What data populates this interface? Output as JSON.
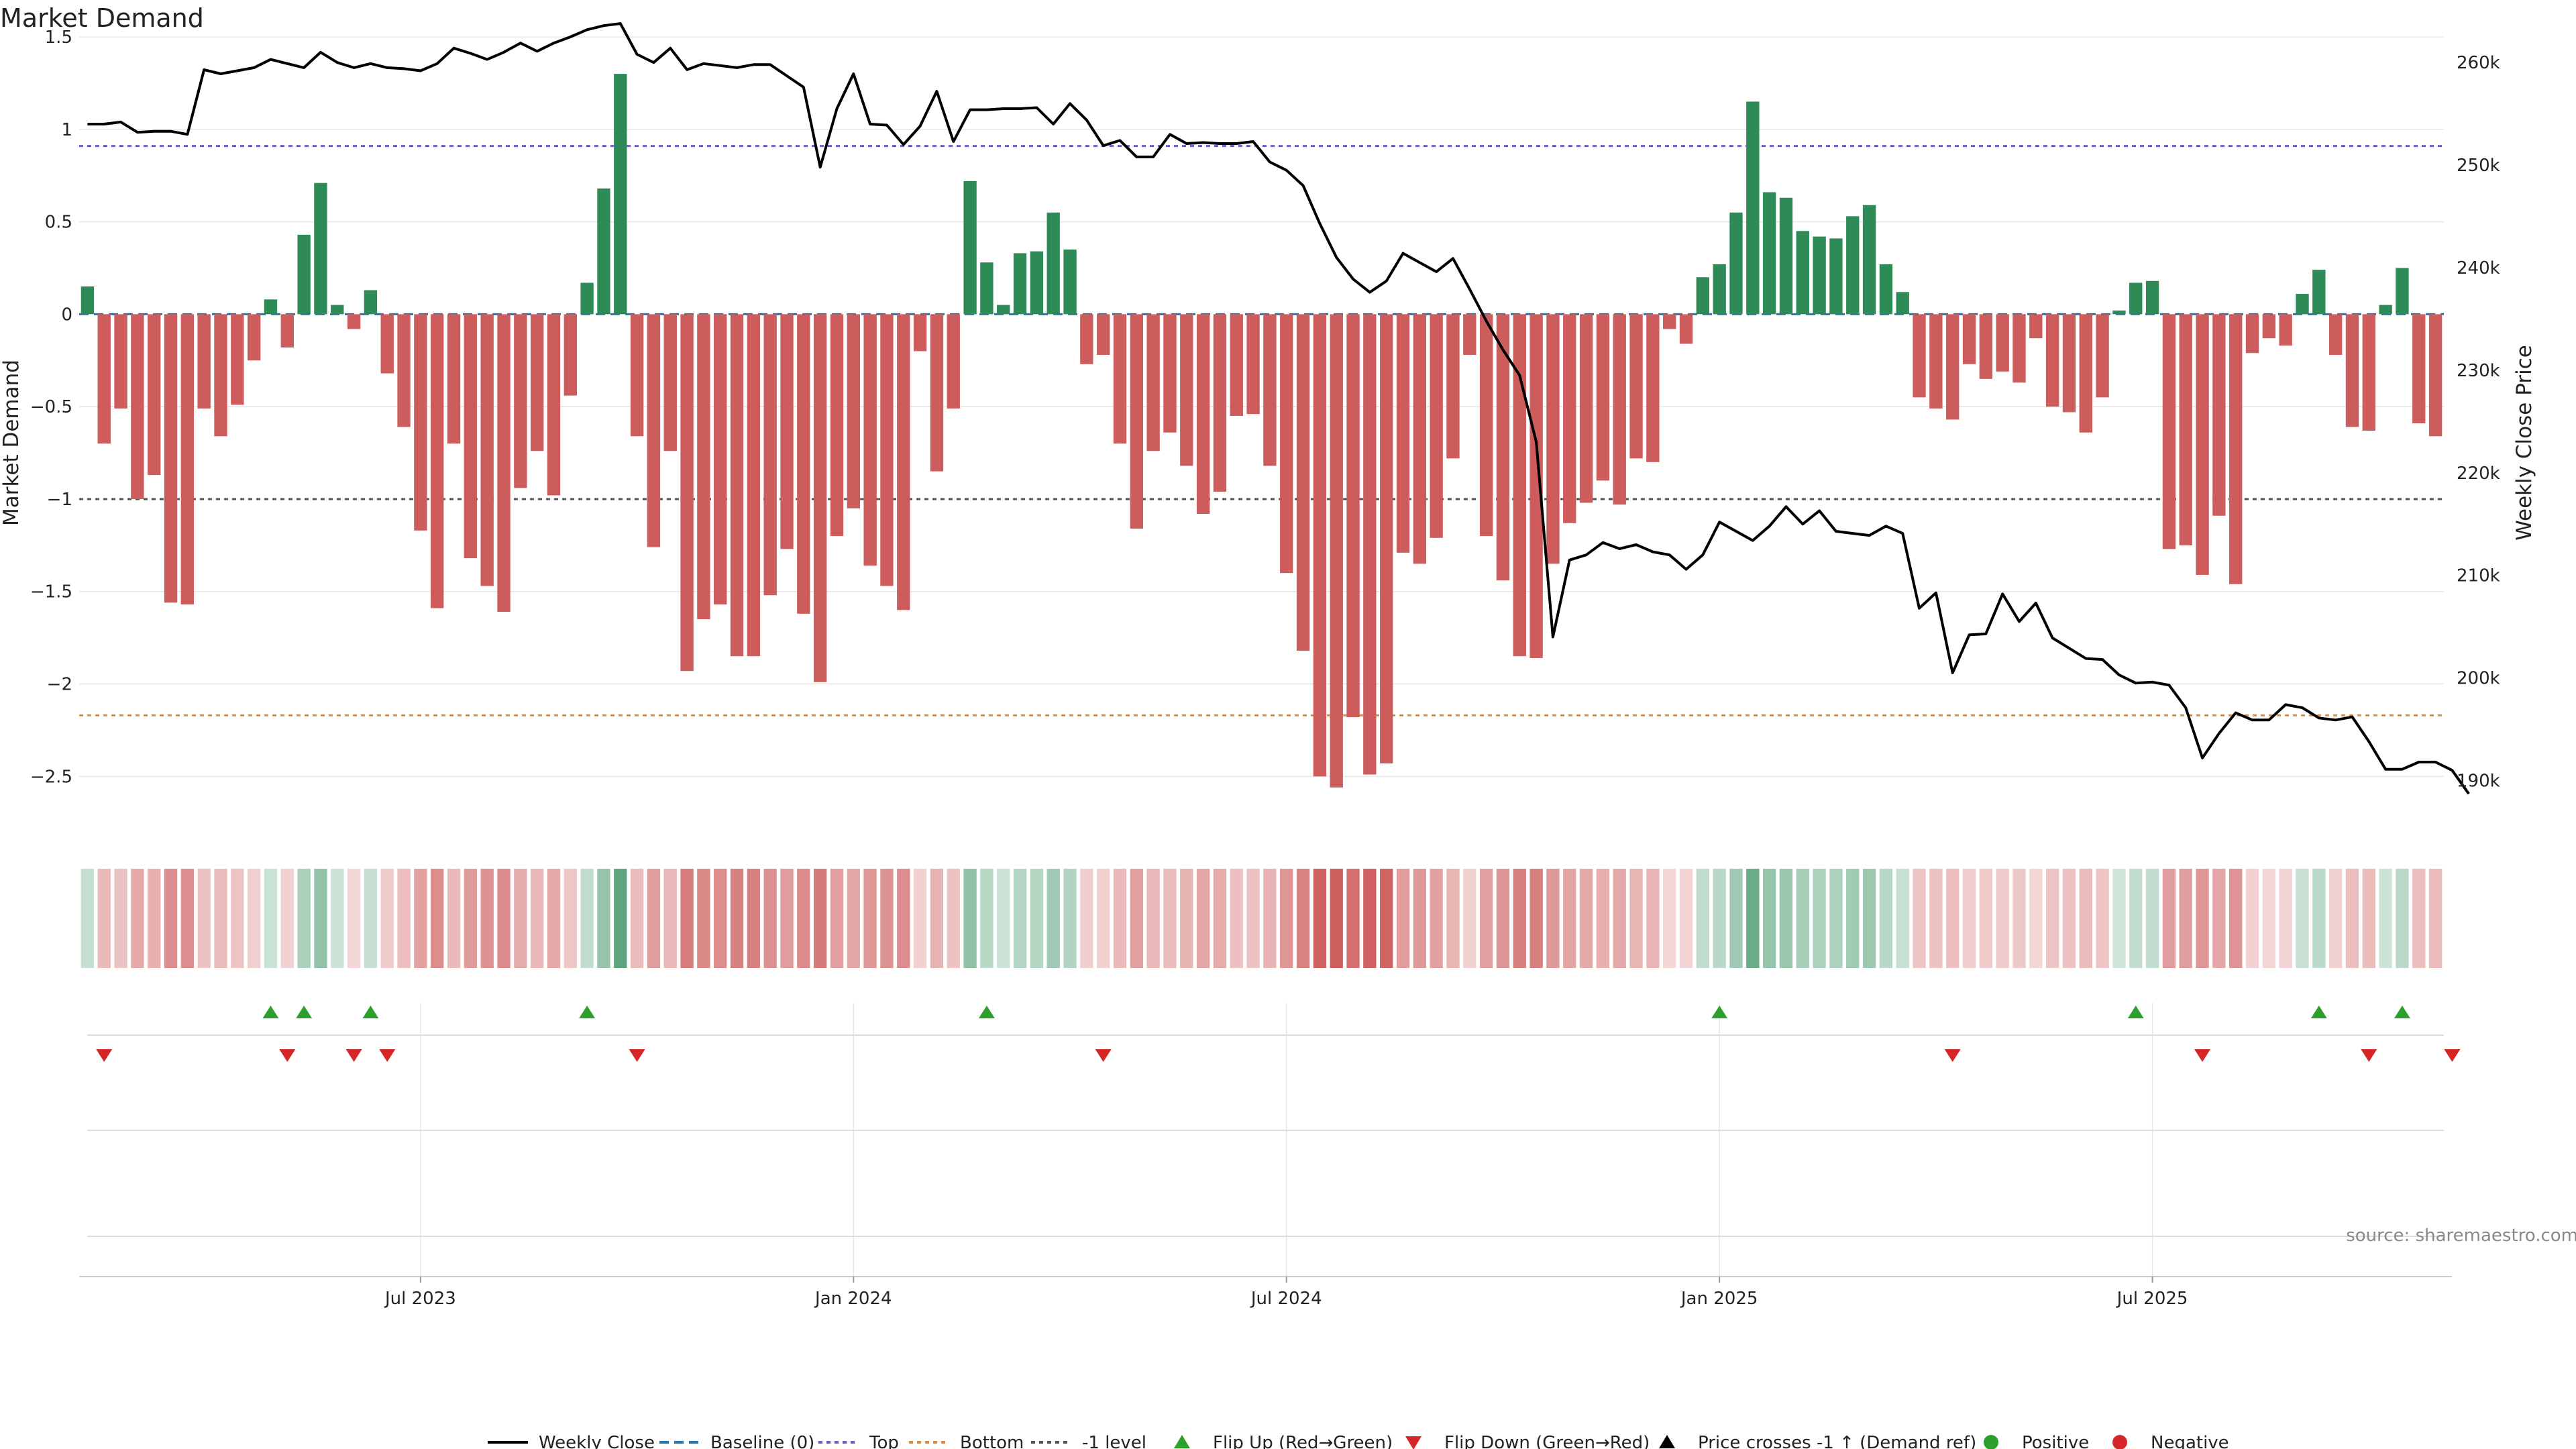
{
  "chart_data": {
    "type": "bar",
    "title": "Market Demand",
    "ylabel": "Market Demand",
    "y2label": "Weekly Close Price",
    "ylim": [
      -2.8,
      1.5
    ],
    "y2lim": [
      185000,
      262500
    ],
    "yticks": [
      "1.5",
      "1",
      "0.5",
      "0",
      "−0.5",
      "−1",
      "−1.5",
      "−2",
      "−2.5"
    ],
    "yticks_values": [
      1.5,
      1,
      0.5,
      0,
      -0.5,
      -1,
      -1.5,
      -2,
      -2.5
    ],
    "y2ticks": [
      "260k",
      "250k",
      "240k",
      "230k",
      "220k",
      "210k",
      "200k",
      "190k"
    ],
    "y2ticks_values": [
      260000,
      250000,
      240000,
      230000,
      220000,
      210000,
      200000,
      190000
    ],
    "xticks": [
      "Jul 2023",
      "Jan 2024",
      "Jul 2024",
      "Jan 2025",
      "Jul 2025"
    ],
    "xticks_index": [
      20,
      46,
      72,
      98,
      124
    ],
    "levels": {
      "top": 0.91,
      "bottom": -2.17,
      "minus_one": -1,
      "baseline": 0
    },
    "series": [
      {
        "name": "Market Demand",
        "values": [
          0.15,
          -0.7,
          -0.51,
          -1,
          -0.87,
          -1.56,
          -1.57,
          -0.51,
          -0.66,
          -0.49,
          -0.25,
          0.08,
          -0.18,
          0.43,
          0.71,
          0.05,
          -0.08,
          0.13,
          -0.32,
          -0.61,
          -1.17,
          -1.59,
          -0.7,
          -1.32,
          -1.47,
          -1.61,
          -0.94,
          -0.74,
          -0.98,
          -0.44,
          0.17,
          0.68,
          1.3,
          -0.66,
          -1.26,
          -0.74,
          -1.93,
          -1.65,
          -1.57,
          -1.85,
          -1.85,
          -1.52,
          -1.27,
          -1.62,
          -1.99,
          -1.2,
          -1.05,
          -1.36,
          -1.47,
          -1.6,
          -0.2,
          -0.85,
          -0.51,
          0.72,
          0.28,
          0.05,
          0.33,
          0.34,
          0.55,
          0.35,
          -0.27,
          -0.22,
          -0.7,
          -1.16,
          -0.74,
          -0.64,
          -0.82,
          -1.08,
          -0.96,
          -0.55,
          -0.54,
          -0.82,
          -1.4,
          -1.82,
          -2.5,
          -2.56,
          -2.18,
          -2.49,
          -2.43,
          -1.29,
          -1.35,
          -1.21,
          -0.78,
          -0.22,
          -1.2,
          -1.44,
          -1.85,
          -1.86,
          -1.35,
          -1.13,
          -1.02,
          -0.9,
          -1.03,
          -0.78,
          -0.8,
          -0.08,
          -0.16,
          0.2,
          0.27,
          0.55,
          1.15,
          0.66,
          0.63,
          0.45,
          0.42,
          0.41,
          0.53,
          0.59,
          0.27,
          0.12,
          -0.45,
          -0.51,
          -0.57,
          -0.27,
          -0.35,
          -0.31,
          -0.37,
          -0.13,
          -0.5,
          -0.53,
          -0.64,
          -0.45,
          0.02,
          0.17,
          0.18,
          -1.27,
          -1.25,
          -1.41,
          -1.09,
          -1.46,
          -0.21,
          -0.13,
          -0.17,
          0.11,
          0.24,
          -0.22,
          -0.61,
          -0.63,
          0.05,
          0.25,
          -0.59,
          -0.66
        ]
      },
      {
        "name": "Weekly Close",
        "values": [
          254000,
          254000,
          254200,
          253200,
          253300,
          253300,
          253000,
          259300,
          258900,
          259200,
          259500,
          260300,
          259900,
          259500,
          261000,
          260000,
          259500,
          259900,
          259500,
          259400,
          259200,
          259900,
          261400,
          260900,
          260300,
          261000,
          261900,
          261100,
          261900,
          262500,
          263200,
          263600,
          263800,
          260800,
          260000,
          261400,
          259300,
          259900,
          259700,
          259500,
          259800,
          259800,
          258700,
          257600,
          249800,
          255500,
          258900,
          254000,
          253900,
          252000,
          253800,
          257200,
          252300,
          255400,
          255400,
          255500,
          255500,
          255600,
          254000,
          256000,
          254400,
          251900,
          252400,
          250800,
          250800,
          253000,
          252100,
          252200,
          252100,
          252100,
          252300,
          250300,
          249500,
          248000,
          244300,
          241000,
          238900,
          237600,
          238700,
          241400,
          240500,
          239600,
          240900,
          237900,
          234800,
          232000,
          229500,
          223000,
          204000,
          211500,
          212000,
          213200,
          212600,
          213000,
          212300,
          212000,
          210600,
          212000,
          215200,
          214300,
          213400,
          214800,
          216700,
          215000,
          216300,
          214300,
          214100,
          213900,
          214800,
          214100,
          206800,
          208300,
          200500,
          204200,
          204300,
          208200,
          205500,
          207300,
          203900,
          202900,
          201900,
          201800,
          200300,
          199500,
          199600,
          199300,
          197100,
          192200,
          194600,
          196600,
          195900,
          195900,
          197400,
          197100,
          196100,
          195900,
          196200,
          193800,
          191100,
          191100,
          191800,
          191800,
          191000,
          188700
        ]
      }
    ],
    "flip_up_index": [
      11,
      13,
      17,
      30,
      54,
      98,
      123,
      134,
      139
    ],
    "flip_down_index": [
      1,
      12,
      16,
      18,
      33,
      61,
      112,
      127,
      137,
      142
    ],
    "legend": [
      "Weekly Close",
      "Baseline (0)",
      "Top",
      "Bottom",
      "-1 level",
      "Flip Up (Red→Green)",
      "Flip Down (Green→Red)",
      "Price crosses -1 ↑ (Demand ref)",
      "Positive",
      "Negative"
    ],
    "legend_placement": "bottom-center",
    "source": "source: sharemaestro.com"
  },
  "colors": {
    "positive": "#2e8b57",
    "negative": "#cd5c5c",
    "price": "#000000",
    "baseline": "#1f77b4",
    "top": "#6a5acd",
    "bottom": "#e08a3c",
    "minus_one": "#555555",
    "flip_up": "#2ca02c",
    "flip_down": "#d62728",
    "grid": "#e6e6e6"
  }
}
